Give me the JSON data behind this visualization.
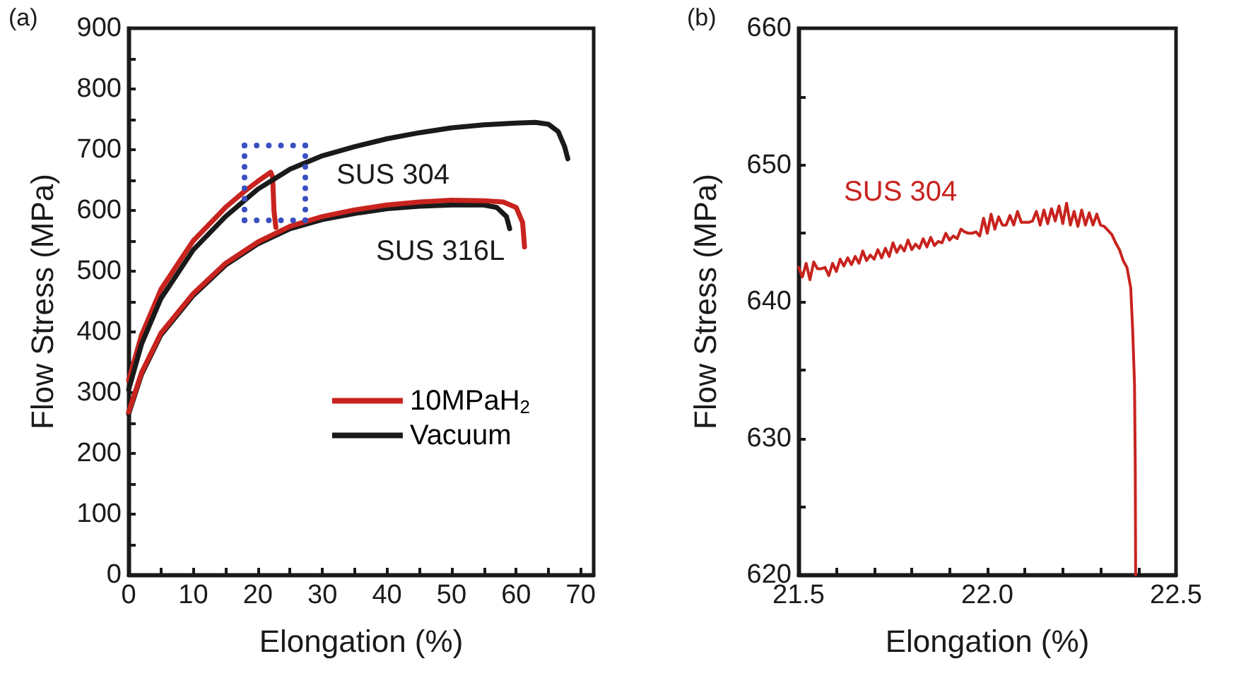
{
  "chart_data": [
    {
      "type": "line",
      "xlabel": "Elongation (%)",
      "ylabel": "Flow Stress (MPa)",
      "xlim": [
        0,
        72
      ],
      "ylim": [
        0,
        900
      ],
      "xticks": [
        0,
        {
          "value": 5,
          "label": null
        },
        10,
        {
          "value": 15,
          "label": null
        },
        20,
        {
          "value": 25,
          "label": null
        },
        30,
        {
          "value": 35,
          "label": null
        },
        40,
        {
          "value": 45,
          "label": null
        },
        50,
        {
          "value": 55,
          "label": null
        },
        60,
        {
          "value": 65,
          "label": null
        },
        70
      ],
      "yticks": [
        0,
        {
          "value": 50,
          "label": null
        },
        100,
        {
          "value": 150,
          "label": null
        },
        200,
        {
          "value": 250,
          "label": null
        },
        300,
        {
          "value": 350,
          "label": null
        },
        400,
        {
          "value": 450,
          "label": null
        },
        500,
        {
          "value": 550,
          "label": null
        },
        600,
        {
          "value": 650,
          "label": null
        },
        700,
        {
          "value": 750,
          "label": null
        },
        800,
        {
          "value": 850,
          "label": null
        },
        900
      ],
      "grid": false,
      "legend": "right",
      "marker": "none",
      "line_style": "solid",
      "annotations": [
        "(a)",
        "SUS 304",
        "SUS 316L"
      ],
      "series": [
        {
          "name": "10MPaH$_{2}$",
          "color": "#c8231e",
          "x": [
            0,
            2,
            5,
            10,
            15,
            18,
            20,
            22,
            22.3,
            22.5,
            22.8
          ],
          "values": [
            320,
            395,
            470,
            550,
            605,
            632,
            648,
            663,
            655,
            600,
            572
          ]
        },
        {
          "name": "Vacuum",
          "color": "#1a1a1a",
          "x": [
            0,
            2,
            5,
            10,
            15,
            20,
            25,
            30,
            35,
            40,
            45,
            50,
            55,
            60,
            63,
            65,
            66.5,
            67.5,
            68
          ],
          "values": [
            305,
            380,
            455,
            535,
            590,
            635,
            668,
            690,
            705,
            718,
            728,
            736,
            741,
            744,
            745,
            742,
            730,
            705,
            685
          ]
        },
        {
          "color": "#1a1a1a",
          "x": [
            0,
            2,
            5,
            10,
            15,
            20,
            25,
            30,
            35,
            40,
            45,
            50,
            55,
            57,
            58.5,
            59
          ],
          "values": [
            265,
            330,
            395,
            460,
            510,
            545,
            570,
            585,
            595,
            603,
            607,
            609,
            609,
            605,
            590,
            570
          ]
        },
        {
          "color": "#c8231e",
          "x": [
            0,
            2,
            5,
            10,
            15,
            20,
            25,
            30,
            35,
            40,
            45,
            50,
            55,
            58,
            60,
            61,
            61.3
          ],
          "values": [
            268,
            333,
            398,
            463,
            513,
            548,
            574,
            590,
            601,
            609,
            614,
            617,
            616,
            614,
            605,
            580,
            540
          ]
        }
      ]
    },
    {
      "type": "line",
      "xlabel": "Elongation (%)",
      "ylabel": "Flow Stress (MPa)",
      "xlim": [
        21.5,
        22.5
      ],
      "ylim": [
        620,
        660
      ],
      "xticks": [
        21.5,
        {
          "value": 21.6,
          "label": null
        },
        {
          "value": 21.7,
          "label": null
        },
        {
          "value": 21.8,
          "label": null
        },
        {
          "value": 21.9,
          "label": null
        },
        {
          "value": 22,
          "label": "22.0"
        },
        {
          "value": 22.1,
          "label": null
        },
        {
          "value": 22.2,
          "label": null
        },
        {
          "value": 22.3,
          "label": null
        },
        {
          "value": 22.4,
          "label": null
        },
        22.5
      ],
      "yticks": [
        620,
        {
          "value": 625,
          "label": null
        },
        630,
        {
          "value": 635,
          "label": null
        },
        640,
        {
          "value": 645,
          "label": null
        },
        650,
        {
          "value": 655,
          "label": null
        },
        660
      ],
      "grid": false,
      "marker": "none",
      "line_style": "solid",
      "annotations": [
        "(b)"
      ],
      "series": [
        {
          "name": "SUS 304",
          "color": "#c8231e",
          "x": [
            21.5,
            21.51,
            21.52,
            21.53,
            21.54,
            21.55,
            21.56,
            21.57,
            21.58,
            21.59,
            21.6,
            21.61,
            21.62,
            21.63,
            21.64,
            21.65,
            21.66,
            21.67,
            21.68,
            21.69,
            21.7,
            21.71,
            21.72,
            21.73,
            21.74,
            21.75,
            21.76,
            21.77,
            21.78,
            21.79,
            21.8,
            21.81,
            21.82,
            21.83,
            21.84,
            21.85,
            21.86,
            21.87,
            21.88,
            21.89,
            21.9,
            21.91,
            21.92,
            21.93,
            21.94,
            21.95,
            21.96,
            21.97,
            21.98,
            21.99,
            22.0,
            22.01,
            22.02,
            22.03,
            22.04,
            22.05,
            22.06,
            22.07,
            22.08,
            22.09,
            22.1,
            22.11,
            22.12,
            22.13,
            22.14,
            22.15,
            22.16,
            22.17,
            22.18,
            22.19,
            22.2,
            22.21,
            22.22,
            22.23,
            22.24,
            22.25,
            22.26,
            22.27,
            22.28,
            22.29,
            22.3,
            22.31,
            22.32,
            22.33,
            22.34,
            22.35,
            22.36,
            22.37,
            22.38,
            22.385,
            22.39,
            22.392,
            22.393
          ],
          "values": [
            642.5,
            641.8,
            642.8,
            641.6,
            642.9,
            642.4,
            642.4,
            642.5,
            641.9,
            642.8,
            642.2,
            643.1,
            642.6,
            643.2,
            642.7,
            643.3,
            642.8,
            643.7,
            643.0,
            643.4,
            643.1,
            643.8,
            643.2,
            643.9,
            643.3,
            644.3,
            643.6,
            644.1,
            643.7,
            644.5,
            643.8,
            644.2,
            643.9,
            644.6,
            644.0,
            644.7,
            644.1,
            644.4,
            644.3,
            645.0,
            644.5,
            644.8,
            644.6,
            645.3,
            645.1,
            645.0,
            645.0,
            645.1,
            644.8,
            646.1,
            645.0,
            646.4,
            645.3,
            646.2,
            645.6,
            645.6,
            646.3,
            645.6,
            646.6,
            645.8,
            645.8,
            645.8,
            645.9,
            646.6,
            645.6,
            646.7,
            645.7,
            646.8,
            645.9,
            647.0,
            645.7,
            647.2,
            645.6,
            646.6,
            645.5,
            646.7,
            645.6,
            646.5,
            645.6,
            646.4,
            645.6,
            645.5,
            645.2,
            644.9,
            644.3,
            643.8,
            643.0,
            642.5,
            641.0,
            638.0,
            634.0,
            628.0,
            620.0
          ]
        }
      ]
    }
  ]
}
